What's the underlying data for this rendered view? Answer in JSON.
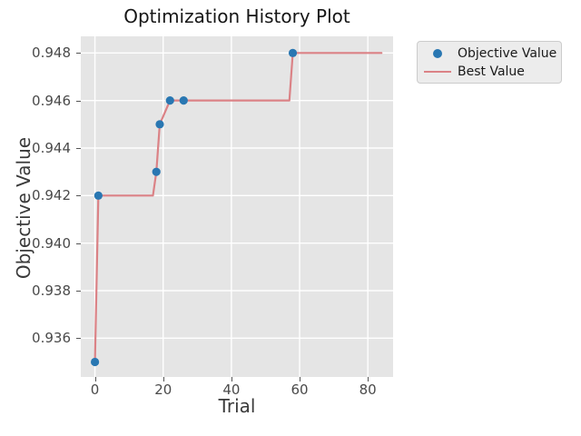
{
  "colors": {
    "figure_bg": "#ffffff",
    "plot_bg": "#e5e5e5",
    "grid": "#ffffff",
    "marker": "#2977b2",
    "line": "#db8286",
    "tick": "#555555",
    "legend_bg": "#ececec",
    "legend_border": "#cccccc"
  },
  "chart_data": {
    "type": "scatter",
    "title": "Optimization History Plot",
    "xlabel": "Trial",
    "ylabel": "Objective Value",
    "xlim": [
      -4.15,
      87.4
    ],
    "ylim": [
      0.93437,
      0.9487
    ],
    "grid": true,
    "x_ticks": [
      0,
      20,
      40,
      60,
      80
    ],
    "x_tick_labels": [
      "0",
      "20",
      "40",
      "60",
      "80"
    ],
    "y_ticks": [
      0.936,
      0.938,
      0.94,
      0.942,
      0.944,
      0.946,
      0.948
    ],
    "y_tick_labels": [
      "0.936",
      "0.938",
      "0.940",
      "0.942",
      "0.944",
      "0.946",
      "0.948"
    ],
    "legend_position": "outside-upper-right",
    "series": [
      {
        "name": "Objective Value",
        "type": "scatter",
        "points": [
          [
            0,
            0.935
          ],
          [
            1,
            0.942
          ],
          [
            18,
            0.943
          ],
          [
            19,
            0.945
          ],
          [
            22,
            0.946
          ],
          [
            26,
            0.946
          ],
          [
            58,
            0.948
          ]
        ]
      },
      {
        "name": "Best Value",
        "type": "line",
        "points": [
          [
            0,
            0.935
          ],
          [
            1,
            0.942
          ],
          [
            17,
            0.942
          ],
          [
            18,
            0.943
          ],
          [
            19,
            0.945
          ],
          [
            22,
            0.946
          ],
          [
            57,
            0.946
          ],
          [
            58,
            0.948
          ],
          [
            84,
            0.948
          ]
        ]
      }
    ]
  }
}
